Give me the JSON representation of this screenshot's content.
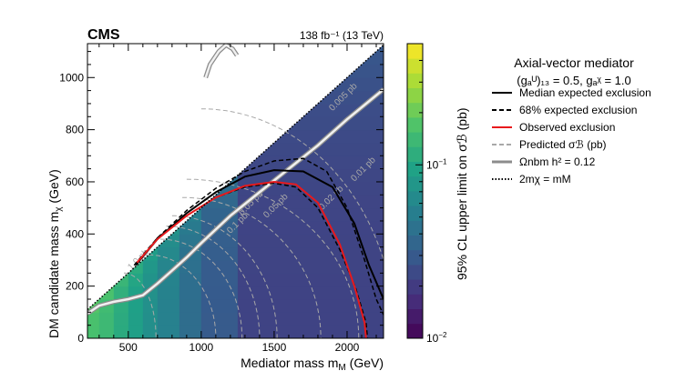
{
  "chart_data": {
    "type": "heatmap",
    "experiment": "CMS",
    "lumi": "138 fb⁻¹ (13 TeV)",
    "xlabel": "Mediator mass m",
    "xlabel_sub": "M",
    "xlabel_unit": " (GeV)",
    "ylabel": "DM candidate mass m",
    "ylabel_sub": "χ",
    "ylabel_unit": " (GeV)",
    "zlabel": "95% CL upper limit on σℬ (pb)",
    "xlim": [
      220,
      2250
    ],
    "ylim": [
      0,
      1130
    ],
    "zlim": [
      0.01,
      0.5
    ],
    "zscale": "log",
    "x_ticks": [
      500,
      1000,
      1500,
      2000
    ],
    "x_tick_labels": [
      "500",
      "1000",
      "1500",
      "2000"
    ],
    "y_ticks": [
      0,
      200,
      400,
      600,
      800,
      1000
    ],
    "y_tick_labels": [
      "0",
      "200",
      "400",
      "600",
      "800",
      "1000"
    ],
    "z_ticks": [
      0.01,
      0.1
    ],
    "z_tick_labels": [
      [
        "10",
        "−2"
      ],
      [
        "10",
        "−1"
      ]
    ],
    "z_tick_label_format": "base-exponent",
    "mass_x_bins": [
      220,
      300,
      400,
      500,
      600,
      700,
      850,
      1000,
      1250,
      2250
    ],
    "mass_y_bin_width": 50,
    "limit_at_diagonal_pb": [
      0.22,
      0.2,
      0.16,
      0.13,
      0.1,
      0.08,
      0.06,
      0.045,
      0.03
    ],
    "limit_off_diagonal_pb": [
      0.16,
      0.14,
      0.11,
      0.09,
      0.07,
      0.055,
      0.04,
      0.03,
      0.022
    ],
    "legend": {
      "position": "right",
      "header_line1": "Axial-vector mediator",
      "header_line2": "(gₐᵁ)₁₃ = 0.5, gₐᵡ = 1.0",
      "entries": [
        {
          "label": "Median expected exclusion",
          "color": "#000000",
          "style": "solid"
        },
        {
          "label": "68% expected exclusion",
          "color": "#000000",
          "style": "dashed"
        },
        {
          "label": "Observed exclusion",
          "color": "#e8191c",
          "style": "solid"
        },
        {
          "label": "Predicted σℬ (pb)",
          "color": "#a8a8a8",
          "style": "dashed"
        },
        {
          "label": "Ωnbm h² = 0.12",
          "color": "#8c8c8c",
          "style": "double"
        },
        {
          "label": "2mχ = mM",
          "color": "#000000",
          "style": "dotted"
        }
      ]
    },
    "contour_labels": [
      {
        "text": "0.005 pb",
        "x": 1900,
        "y": 870
      },
      {
        "text": "0.01 pb",
        "x": 2050,
        "y": 600
      },
      {
        "text": "0.02 pb",
        "x": 1830,
        "y": 490
      },
      {
        "text": "0.05 pb",
        "x": 1450,
        "y": 460
      },
      {
        "text": "0.05 pb",
        "x": 1280,
        "y": 470
      },
      {
        "text": "0.1 pb",
        "x": 1200,
        "y": 400
      },
      {
        "text": "1.0 pb",
        "x": 520,
        "y": 260
      }
    ],
    "observed_exclusion": {
      "x": [
        560,
        700,
        900,
        1100,
        1300,
        1500,
        1650,
        1800,
        1950,
        2050,
        2120,
        2130
      ],
      "y": [
        290,
        380,
        470,
        540,
        585,
        600,
        590,
        520,
        360,
        200,
        60,
        0
      ]
    },
    "expected_exclusion": {
      "x": [
        550,
        700,
        900,
        1100,
        1300,
        1500,
        1700,
        1900,
        2050,
        2150,
        2250
      ],
      "y": [
        280,
        380,
        480,
        560,
        620,
        645,
        640,
        580,
        440,
        280,
        150
      ]
    },
    "expected_minus": {
      "x": [
        560,
        700,
        900,
        1100,
        1300,
        1500,
        1650,
        1800,
        1950,
        2060,
        2130,
        2140
      ],
      "y": [
        285,
        385,
        470,
        540,
        580,
        595,
        580,
        500,
        340,
        190,
        60,
        0
      ]
    },
    "expected_plus": {
      "x": [
        540,
        700,
        900,
        1100,
        1300,
        1500,
        1700,
        1860,
        2000,
        2120,
        2200,
        2250
      ],
      "y": [
        280,
        385,
        490,
        575,
        640,
        680,
        690,
        640,
        500,
        300,
        150,
        90
      ]
    },
    "relic_lower": {
      "x": [
        220,
        300,
        400,
        500,
        600,
        700,
        800,
        900,
        1000,
        1200,
        1400,
        1600,
        1800,
        2000,
        2250
      ],
      "y": [
        95,
        125,
        140,
        150,
        165,
        210,
        260,
        310,
        365,
        470,
        560,
        650,
        740,
        840,
        955
      ]
    },
    "relic_upper": {
      "x": [
        1030,
        1060,
        1120,
        1170,
        1215,
        1245
      ],
      "y": [
        1000,
        1050,
        1100,
        1125,
        1110,
        1085
      ]
    }
  }
}
